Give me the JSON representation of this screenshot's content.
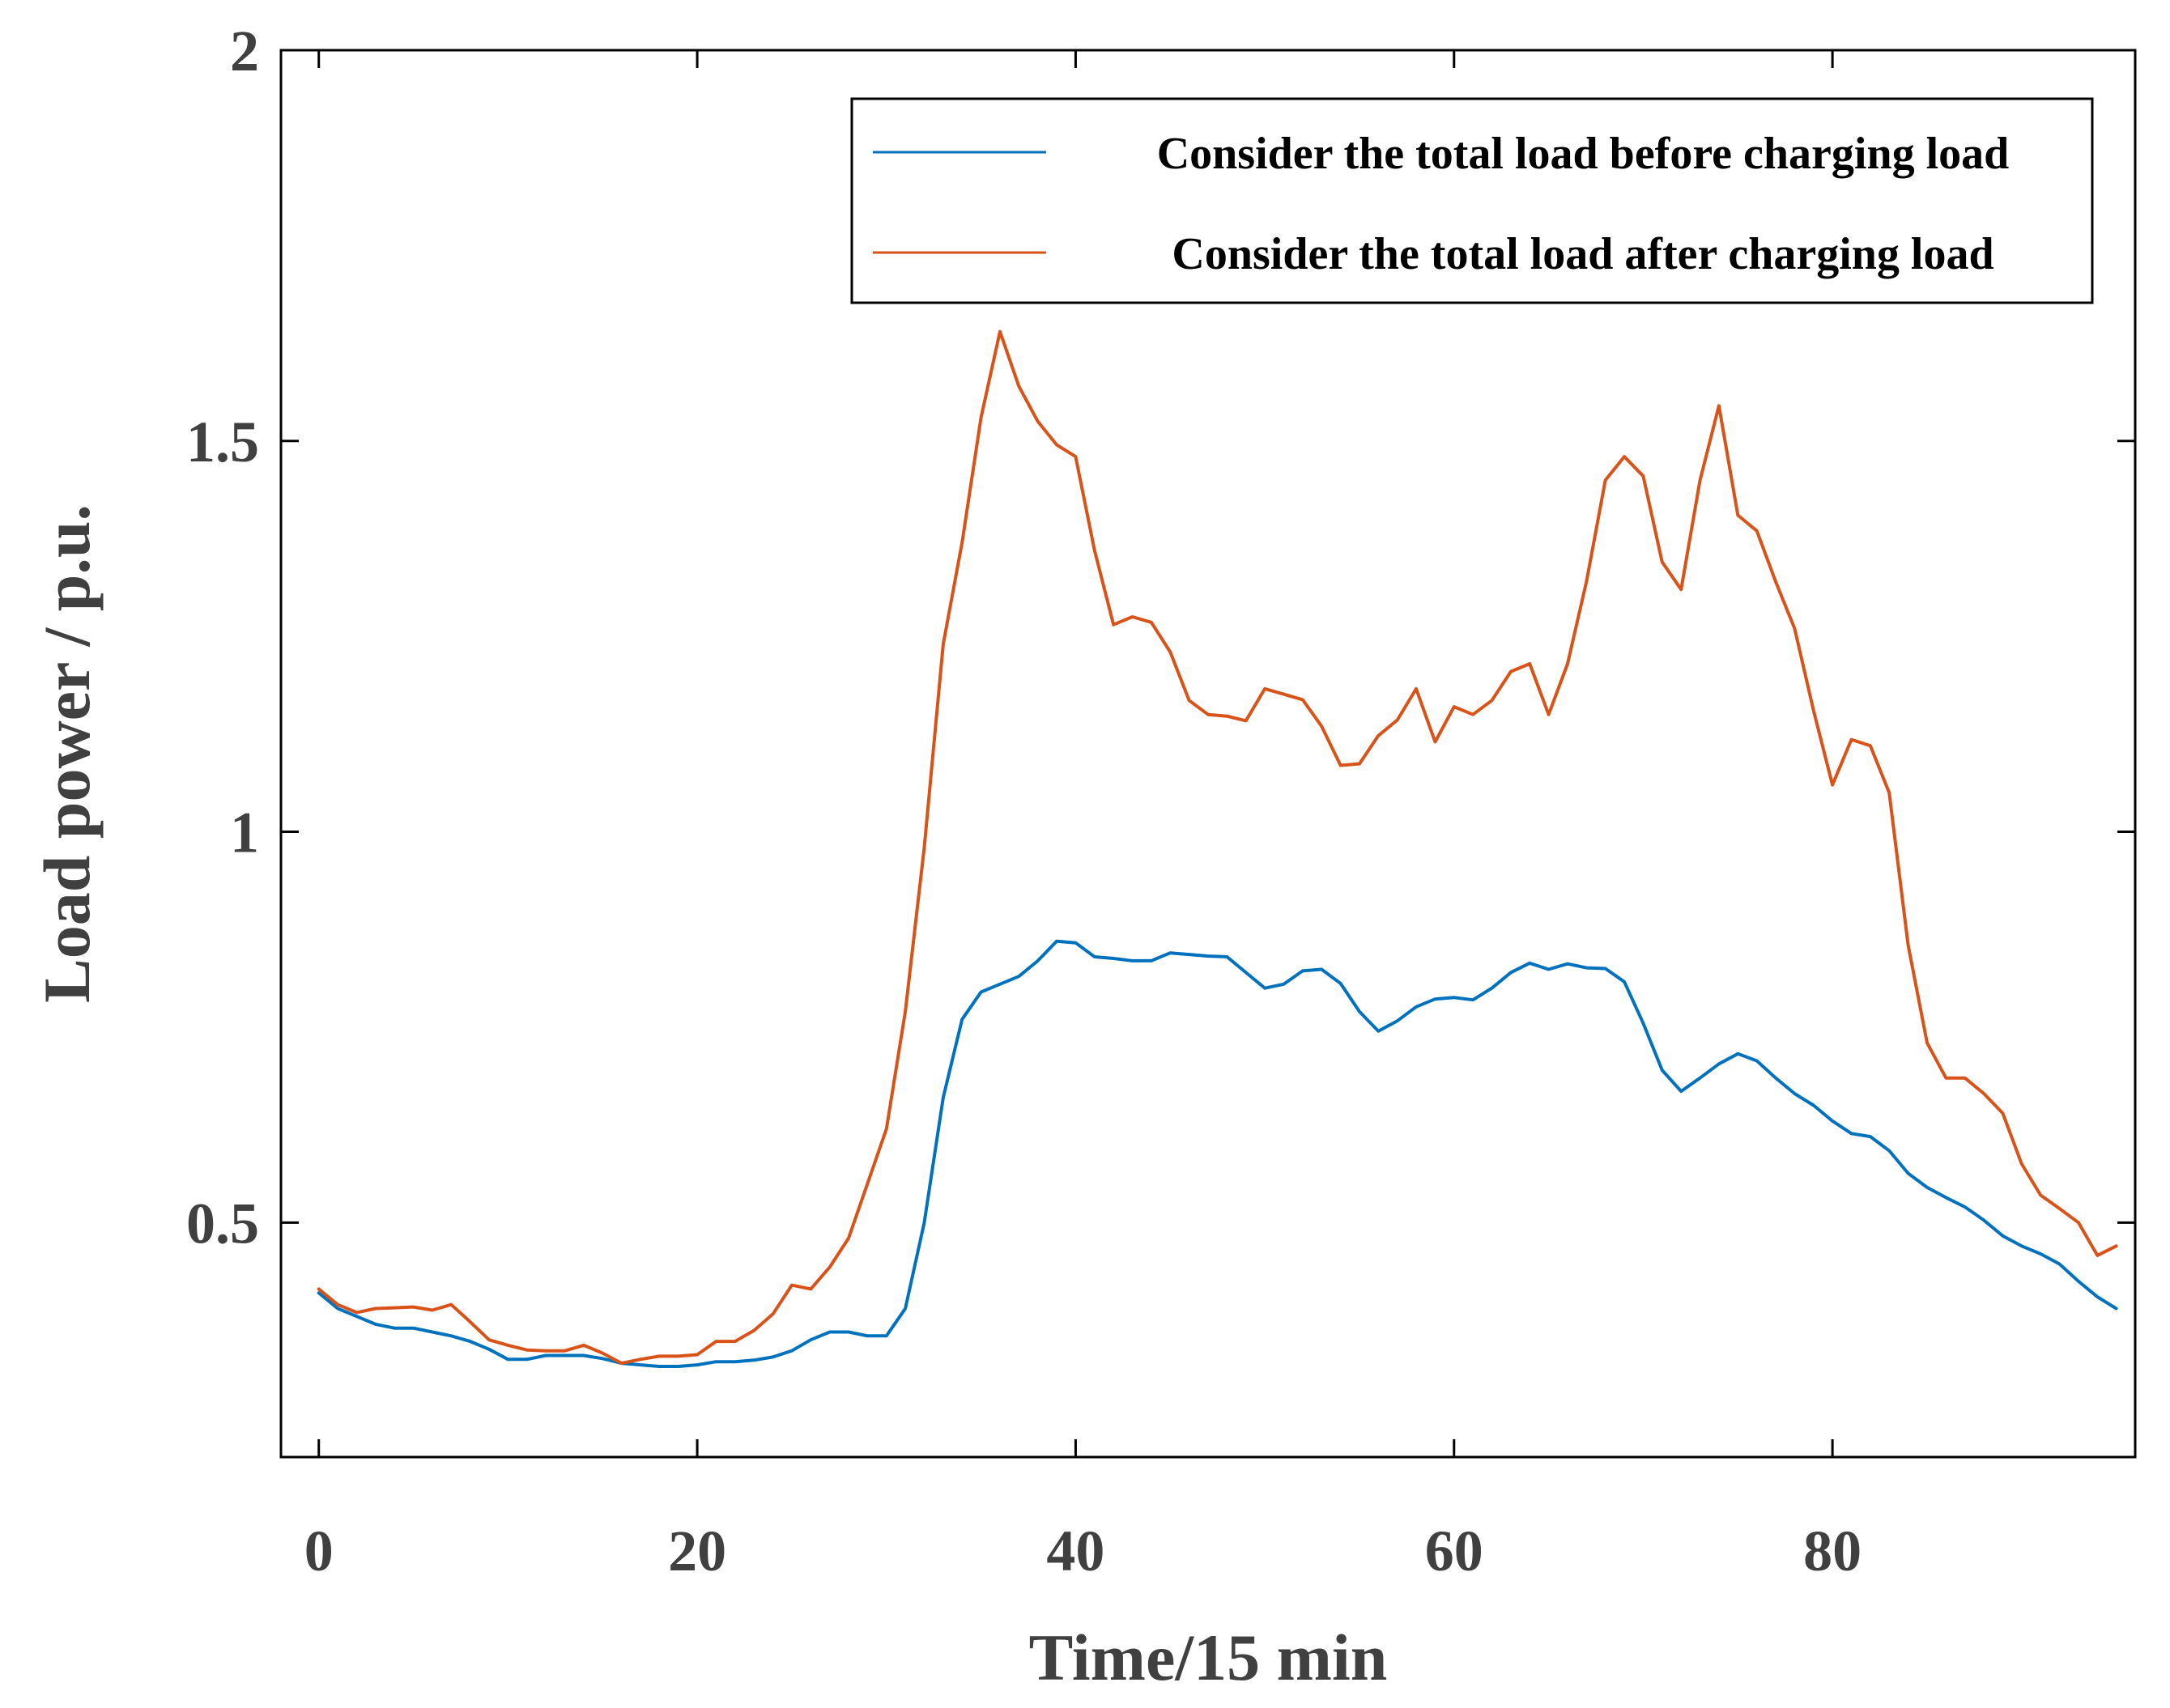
{
  "chart_data": {
    "type": "line",
    "title": "",
    "xlabel": "Time/15 min",
    "ylabel": "Load power / p.u.",
    "xlim": [
      -2,
      96
    ],
    "ylim": [
      0.2,
      2.0
    ],
    "xticks": [
      0,
      20,
      40,
      60,
      80
    ],
    "xtick_labels": [
      "0",
      "20",
      "40",
      "60",
      "80"
    ],
    "yticks": [
      0.5,
      1,
      1.5,
      2
    ],
    "ytick_labels": [
      "0.5",
      "1",
      "1.5",
      "2"
    ],
    "grid": false,
    "legend_position": "top-right",
    "series": [
      {
        "name": "Consider the total load before charging load",
        "color": "#0072BD",
        "x": [
          0,
          1,
          2,
          3,
          4,
          5,
          6,
          7,
          8,
          9,
          10,
          11,
          12,
          13,
          14,
          15,
          16,
          17,
          18,
          19,
          20,
          21,
          22,
          23,
          24,
          25,
          26,
          27,
          28,
          29,
          30,
          31,
          32,
          33,
          34,
          35,
          36,
          37,
          38,
          39,
          40,
          41,
          42,
          43,
          44,
          45,
          46,
          47,
          48,
          49,
          50,
          51,
          52,
          53,
          54,
          55,
          56,
          57,
          58,
          59,
          60,
          61,
          62,
          63,
          64,
          65,
          66,
          67,
          68,
          69,
          70,
          71,
          72,
          73,
          74,
          75,
          76,
          77,
          78,
          79,
          80,
          81,
          82,
          83,
          84,
          85,
          86,
          87,
          88,
          89,
          90,
          91,
          92,
          93,
          94,
          95
        ],
        "values": [
          0.41,
          0.39,
          0.38,
          0.37,
          0.365,
          0.365,
          0.36,
          0.355,
          0.348,
          0.338,
          0.325,
          0.325,
          0.33,
          0.33,
          0.33,
          0.326,
          0.32,
          0.318,
          0.316,
          0.316,
          0.318,
          0.322,
          0.322,
          0.324,
          0.328,
          0.336,
          0.35,
          0.36,
          0.36,
          0.355,
          0.355,
          0.39,
          0.5,
          0.66,
          0.76,
          0.795,
          0.805,
          0.815,
          0.835,
          0.86,
          0.858,
          0.84,
          0.838,
          0.835,
          0.835,
          0.845,
          0.843,
          0.841,
          0.84,
          0.82,
          0.8,
          0.805,
          0.822,
          0.824,
          0.806,
          0.77,
          0.745,
          0.758,
          0.776,
          0.786,
          0.788,
          0.785,
          0.8,
          0.82,
          0.832,
          0.824,
          0.831,
          0.826,
          0.825,
          0.808,
          0.755,
          0.695,
          0.668,
          0.685,
          0.703,
          0.716,
          0.707,
          0.685,
          0.665,
          0.65,
          0.63,
          0.614,
          0.61,
          0.592,
          0.563,
          0.545,
          0.532,
          0.52,
          0.503,
          0.483,
          0.47,
          0.46,
          0.447,
          0.425,
          0.405,
          0.39
        ]
      },
      {
        "name": "Consider the total load after charging load",
        "color": "#D95319",
        "x": [
          0,
          1,
          2,
          3,
          4,
          5,
          6,
          7,
          8,
          9,
          10,
          11,
          12,
          13,
          14,
          15,
          16,
          17,
          18,
          19,
          20,
          21,
          22,
          23,
          24,
          25,
          26,
          27,
          28,
          29,
          30,
          31,
          32,
          33,
          34,
          35,
          36,
          37,
          38,
          39,
          40,
          41,
          42,
          43,
          44,
          45,
          46,
          47,
          48,
          49,
          50,
          51,
          52,
          53,
          54,
          55,
          56,
          57,
          58,
          59,
          60,
          61,
          62,
          63,
          64,
          65,
          66,
          67,
          68,
          69,
          70,
          71,
          72,
          73,
          74,
          75,
          76,
          77,
          78,
          79,
          80,
          81,
          82,
          83,
          84,
          85,
          86,
          87,
          88,
          89,
          90,
          91,
          92,
          93,
          94,
          95
        ],
        "values": [
          0.415,
          0.395,
          0.385,
          0.39,
          0.391,
          0.392,
          0.388,
          0.395,
          0.373,
          0.35,
          0.343,
          0.337,
          0.336,
          0.336,
          0.343,
          0.333,
          0.32,
          0.325,
          0.329,
          0.329,
          0.331,
          0.348,
          0.348,
          0.362,
          0.383,
          0.42,
          0.415,
          0.443,
          0.48,
          0.55,
          0.62,
          0.77,
          0.98,
          1.24,
          1.37,
          1.53,
          1.64,
          1.57,
          1.525,
          1.495,
          1.48,
          1.36,
          1.265,
          1.275,
          1.268,
          1.23,
          1.168,
          1.15,
          1.148,
          1.142,
          1.183,
          1.176,
          1.169,
          1.135,
          1.085,
          1.087,
          1.123,
          1.143,
          1.183,
          1.115,
          1.16,
          1.15,
          1.168,
          1.205,
          1.215,
          1.15,
          1.215,
          1.32,
          1.45,
          1.48,
          1.455,
          1.345,
          1.31,
          1.45,
          1.545,
          1.405,
          1.385,
          1.32,
          1.26,
          1.155,
          1.06,
          1.118,
          1.11,
          1.05,
          0.855,
          0.73,
          0.685,
          0.685,
          0.665,
          0.64,
          0.575,
          0.535,
          0.518,
          0.5,
          0.458,
          0.47
        ]
      }
    ]
  }
}
